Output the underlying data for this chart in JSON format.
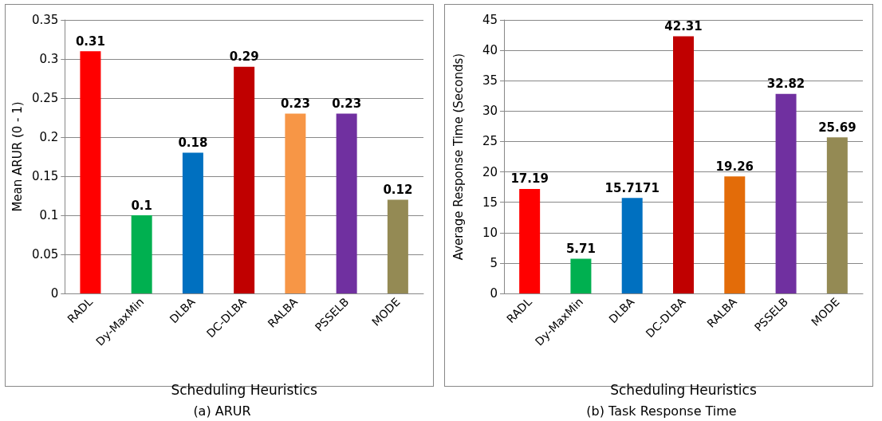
{
  "chart_data": [
    {
      "type": "bar",
      "title": "(a) ARUR",
      "xlabel": "Scheduling Heuristics",
      "ylabel": "Mean ARUR (0 - 1)",
      "categories": [
        "RADL",
        "Dy-MaxMin",
        "DLBA",
        "DC-DLBA",
        "RALBA",
        "PSSELB",
        "MODE"
      ],
      "values": [
        0.31,
        0.1,
        0.18,
        0.29,
        0.23,
        0.23,
        0.12
      ],
      "colors": [
        "#ff0000",
        "#00b050",
        "#0070c0",
        "#c00000",
        "#f79646",
        "#7030a0",
        "#948a54"
      ],
      "ylim": [
        0,
        0.35
      ],
      "yticks": [
        0,
        0.05,
        0.1,
        0.15,
        0.2,
        0.25,
        0.3,
        0.35
      ],
      "grid": "y",
      "data_labels": true
    },
    {
      "type": "bar",
      "title": "(b) Task Response Time",
      "xlabel": "Scheduling Heuristics",
      "ylabel": "Average Response Time (Seconds)",
      "categories": [
        "RADL",
        "Dy-MaxMin",
        "DLBA",
        "DC-DLBA",
        "RALBA",
        "PSSELB",
        "MODE"
      ],
      "values": [
        17.19,
        5.71,
        15.7171,
        42.31,
        19.26,
        32.82,
        25.69
      ],
      "colors": [
        "#ff0000",
        "#00b050",
        "#0070c0",
        "#c00000",
        "#e36c09",
        "#7030a0",
        "#948a54"
      ],
      "ylim": [
        0,
        45
      ],
      "yticks": [
        0,
        5,
        10,
        15,
        20,
        25,
        30,
        35,
        40,
        45
      ],
      "grid": "y",
      "data_labels": true
    }
  ]
}
